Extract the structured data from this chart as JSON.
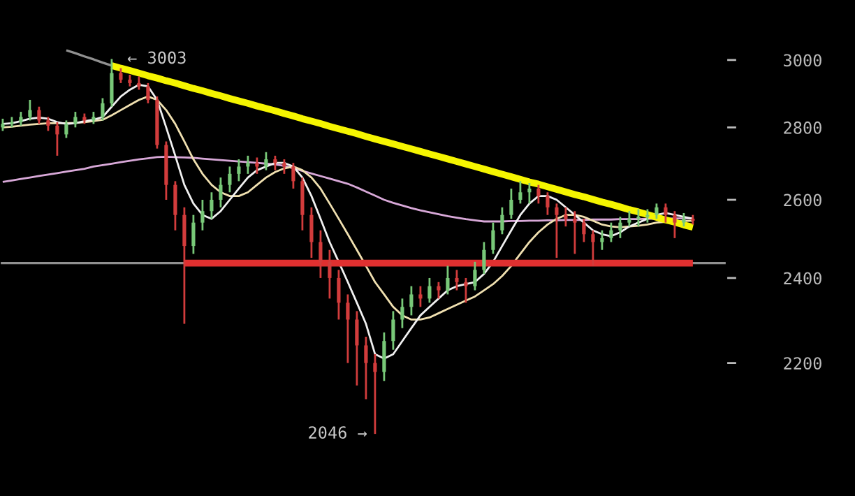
{
  "chart_data": {
    "type": "candlestick",
    "log": true,
    "grid": false,
    "tick_labels": "y",
    "ylim": [
      1920,
      3190
    ],
    "yticks": [
      2200,
      2400,
      2600,
      2800,
      3000
    ],
    "categories": [
      null,
      null,
      null,
      null,
      null,
      null,
      null,
      null,
      null,
      null,
      null,
      null,
      null,
      null,
      null,
      null,
      null,
      null,
      null,
      null,
      null,
      null,
      null,
      null,
      null,
      null,
      null,
      null,
      null,
      null,
      null,
      null,
      null,
      null,
      null,
      null,
      null,
      null,
      null,
      null,
      null,
      null,
      null,
      null,
      null,
      null,
      null,
      null,
      null,
      null,
      null,
      null,
      null,
      null,
      null,
      null,
      null,
      null,
      null,
      null,
      null,
      null,
      null,
      null,
      null,
      null,
      null,
      null,
      null,
      null,
      null,
      null,
      null,
      null,
      null,
      null,
      null
    ],
    "ohlc": [
      [
        2800,
        2825,
        2790,
        2810
      ],
      [
        2810,
        2830,
        2800,
        2815
      ],
      [
        2815,
        2845,
        2805,
        2830
      ],
      [
        2830,
        2880,
        2820,
        2850
      ],
      [
        2850,
        2860,
        2810,
        2820
      ],
      [
        2820,
        2830,
        2790,
        2805
      ],
      [
        2805,
        2815,
        2720,
        2780
      ],
      [
        2780,
        2820,
        2770,
        2810
      ],
      [
        2810,
        2845,
        2800,
        2830
      ],
      [
        2830,
        2840,
        2810,
        2820
      ],
      [
        2820,
        2845,
        2810,
        2830
      ],
      [
        2830,
        2885,
        2820,
        2870
      ],
      [
        2870,
        3003,
        2860,
        2960
      ],
      [
        2960,
        2975,
        2930,
        2940
      ],
      [
        2940,
        2955,
        2920,
        2930
      ],
      [
        2930,
        2950,
        2910,
        2920
      ],
      [
        2920,
        2930,
        2870,
        2880
      ],
      [
        2880,
        2890,
        2740,
        2750
      ],
      [
        2750,
        2760,
        2600,
        2640
      ],
      [
        2640,
        2650,
        2520,
        2560
      ],
      [
        2560,
        2580,
        2290,
        2480
      ],
      [
        2480,
        2560,
        2460,
        2540
      ],
      [
        2540,
        2600,
        2520,
        2570
      ],
      [
        2570,
        2620,
        2550,
        2600
      ],
      [
        2600,
        2660,
        2580,
        2640
      ],
      [
        2640,
        2690,
        2620,
        2670
      ],
      [
        2670,
        2710,
        2650,
        2690
      ],
      [
        2690,
        2720,
        2670,
        2700
      ],
      [
        2700,
        2715,
        2670,
        2690
      ],
      [
        2690,
        2730,
        2680,
        2710
      ],
      [
        2710,
        2720,
        2680,
        2700
      ],
      [
        2700,
        2710,
        2670,
        2690
      ],
      [
        2690,
        2700,
        2630,
        2650
      ],
      [
        2650,
        2660,
        2520,
        2560
      ],
      [
        2560,
        2580,
        2450,
        2490
      ],
      [
        2490,
        2520,
        2400,
        2440
      ],
      [
        2440,
        2470,
        2350,
        2400
      ],
      [
        2400,
        2420,
        2300,
        2340
      ],
      [
        2340,
        2360,
        2200,
        2300
      ],
      [
        2300,
        2320,
        2150,
        2240
      ],
      [
        2240,
        2260,
        2120,
        2200
      ],
      [
        2200,
        2220,
        2046,
        2180
      ],
      [
        2180,
        2270,
        2160,
        2250
      ],
      [
        2250,
        2320,
        2230,
        2300
      ],
      [
        2300,
        2350,
        2280,
        2330
      ],
      [
        2330,
        2380,
        2310,
        2360
      ],
      [
        2360,
        2380,
        2330,
        2350
      ],
      [
        2350,
        2400,
        2340,
        2380
      ],
      [
        2380,
        2390,
        2350,
        2370
      ],
      [
        2370,
        2430,
        2360,
        2400
      ],
      [
        2400,
        2420,
        2370,
        2390
      ],
      [
        2390,
        2400,
        2340,
        2380
      ],
      [
        2380,
        2440,
        2370,
        2420
      ],
      [
        2420,
        2490,
        2410,
        2470
      ],
      [
        2470,
        2540,
        2460,
        2520
      ],
      [
        2520,
        2580,
        2510,
        2560
      ],
      [
        2560,
        2630,
        2550,
        2600
      ],
      [
        2600,
        2650,
        2590,
        2620
      ],
      [
        2620,
        2645,
        2590,
        2630
      ],
      [
        2630,
        2640,
        2590,
        2610
      ],
      [
        2610,
        2620,
        2560,
        2580
      ],
      [
        2580,
        2590,
        2450,
        2560
      ],
      [
        2560,
        2580,
        2530,
        2550
      ],
      [
        2550,
        2570,
        2460,
        2540
      ],
      [
        2540,
        2550,
        2490,
        2510
      ],
      [
        2510,
        2520,
        2430,
        2490
      ],
      [
        2490,
        2520,
        2470,
        2500
      ],
      [
        2500,
        2540,
        2490,
        2520
      ],
      [
        2520,
        2555,
        2500,
        2540
      ],
      [
        2540,
        2570,
        2530,
        2550
      ],
      [
        2550,
        2575,
        2530,
        2555
      ],
      [
        2555,
        2575,
        2540,
        2560
      ],
      [
        2560,
        2590,
        2550,
        2580
      ],
      [
        2580,
        2590,
        2540,
        2560
      ],
      [
        2560,
        2570,
        2500,
        2540
      ],
      [
        2540,
        2565,
        2530,
        2550
      ],
      [
        2550,
        2560,
        2535,
        2545
      ]
    ],
    "colors": [
      "#78c878",
      "#78c878",
      "#78c878",
      "#78c878",
      "#d23c3c",
      "#d23c3c",
      "#d23c3c",
      "#78c878",
      "#78c878",
      "#d23c3c",
      "#78c878",
      "#78c878",
      "#78c878",
      "#d23c3c",
      "#d23c3c",
      "#d23c3c",
      "#d23c3c",
      "#d23c3c",
      "#d23c3c",
      "#d23c3c",
      "#d23c3c",
      "#78c878",
      "#78c878",
      "#78c878",
      "#78c878",
      "#78c878",
      "#78c878",
      "#78c878",
      "#d23c3c",
      "#78c878",
      "#d23c3c",
      "#d23c3c",
      "#d23c3c",
      "#d23c3c",
      "#d23c3c",
      "#d23c3c",
      "#d23c3c",
      "#d23c3c",
      "#d23c3c",
      "#d23c3c",
      "#d23c3c",
      "#d23c3c",
      "#78c878",
      "#78c878",
      "#78c878",
      "#78c878",
      "#d23c3c",
      "#78c878",
      "#d23c3c",
      "#78c878",
      "#d23c3c",
      "#d23c3c",
      "#78c878",
      "#78c878",
      "#78c878",
      "#78c878",
      "#78c878",
      "#78c878",
      "#78c878",
      "#d23c3c",
      "#d23c3c",
      "#d23c3c",
      "#d23c3c",
      "#d23c3c",
      "#d23c3c",
      "#d23c3c",
      "#78c878",
      "#78c878",
      "#78c878",
      "#78c878",
      "#78c878",
      "#78c878",
      "#78c878",
      "#d23c3c",
      "#d23c3c",
      "#78c878",
      "#d23c3c"
    ],
    "ref_lines": [
      {
        "axis": "y",
        "value": 2437,
        "color": "#909090"
      }
    ],
    "series": [
      {
        "type": "line",
        "color": "#d8a8d8",
        "values": [
          2648,
          2652,
          2656,
          2660,
          2664,
          2668,
          2672,
          2676,
          2680,
          2684,
          2690,
          2694,
          2698,
          2702,
          2706,
          2710,
          2713,
          2716,
          2717,
          2716,
          2715,
          2714,
          2712,
          2710,
          2708,
          2706,
          2704,
          2702,
          2700,
          2698,
          2696,
          2692,
          2685,
          2678,
          2671,
          2664,
          2657,
          2650,
          2643,
          2633,
          2622,
          2611,
          2600,
          2592,
          2585,
          2578,
          2572,
          2567,
          2562,
          2557,
          2553,
          2549,
          2546,
          2543,
          2543,
          2543,
          2544,
          2544,
          2545,
          2545,
          2546,
          2546,
          2547,
          2547,
          2547,
          2548,
          2548,
          2548,
          2549,
          2549,
          2549,
          2550,
          2550,
          2550,
          2551,
          2551,
          2551
        ]
      },
      {
        "type": "line",
        "color": "#f0e0b0",
        "values": [
          2800,
          2802,
          2805,
          2808,
          2810,
          2812,
          2812,
          2812,
          2813,
          2815,
          2818,
          2822,
          2835,
          2850,
          2865,
          2880,
          2890,
          2880,
          2850,
          2810,
          2760,
          2710,
          2670,
          2640,
          2620,
          2610,
          2610,
          2620,
          2640,
          2660,
          2675,
          2685,
          2690,
          2680,
          2660,
          2630,
          2590,
          2550,
          2510,
          2470,
          2430,
          2390,
          2360,
          2330,
          2310,
          2300,
          2300,
          2305,
          2315,
          2325,
          2335,
          2345,
          2355,
          2370,
          2385,
          2405,
          2430,
          2460,
          2490,
          2515,
          2535,
          2550,
          2560,
          2560,
          2555,
          2545,
          2535,
          2530,
          2528,
          2530,
          2532,
          2535,
          2540,
          2542,
          2543,
          2544,
          2545
        ]
      },
      {
        "type": "line",
        "color": "#f0f0f0",
        "values": [
          2810,
          2812,
          2818,
          2825,
          2828,
          2825,
          2815,
          2810,
          2812,
          2818,
          2822,
          2830,
          2860,
          2890,
          2910,
          2925,
          2920,
          2880,
          2800,
          2720,
          2640,
          2590,
          2560,
          2550,
          2570,
          2600,
          2630,
          2660,
          2680,
          2690,
          2700,
          2700,
          2690,
          2660,
          2610,
          2550,
          2490,
          2440,
          2390,
          2340,
          2290,
          2220,
          2210,
          2220,
          2250,
          2280,
          2310,
          2330,
          2350,
          2370,
          2380,
          2385,
          2390,
          2410,
          2440,
          2480,
          2520,
          2560,
          2590,
          2610,
          2610,
          2600,
          2580,
          2560,
          2540,
          2520,
          2510,
          2505,
          2515,
          2530,
          2540,
          2550,
          2560,
          2565,
          2560,
          2555,
          2550
        ]
      },
      {
        "type": "line",
        "color": "#909090",
        "values": [
          null,
          null,
          null,
          null,
          null,
          null,
          null,
          3030,
          3021,
          3011,
          3002,
          2992,
          2983,
          null,
          null,
          null,
          null,
          null,
          null,
          null,
          null,
          null,
          null,
          null,
          null,
          null,
          null,
          null,
          null,
          null,
          null,
          null,
          null,
          null,
          null,
          null,
          null,
          null,
          null,
          null,
          null,
          null,
          null,
          null,
          null,
          null,
          null,
          null,
          null,
          null,
          null,
          null,
          null,
          null,
          null,
          null,
          null,
          null,
          null,
          null,
          null,
          null,
          null,
          null,
          null,
          null,
          null,
          null,
          null,
          null,
          null,
          null,
          null,
          null,
          null,
          null,
          null
        ]
      },
      {
        "type": "line",
        "color": "#e03030",
        "values": [
          null,
          null,
          null,
          null,
          null,
          null,
          null,
          null,
          null,
          null,
          null,
          null,
          null,
          null,
          null,
          null,
          null,
          null,
          null,
          null,
          2437,
          2437,
          2437,
          2437,
          2437,
          2437,
          2437,
          2437,
          2437,
          2437,
          2437,
          2437,
          2437,
          2437,
          2437,
          2437,
          2437,
          2437,
          2437,
          2437,
          2437,
          2437,
          2437,
          2437,
          2437,
          2437,
          2437,
          2437,
          2437,
          2437,
          2437,
          2437,
          2437,
          2437,
          2437,
          2437,
          2437,
          2437,
          2437,
          2437,
          2437,
          2437,
          2437,
          2437,
          2437,
          2437,
          2437,
          2437,
          2437,
          2437,
          2437,
          2437,
          2437,
          2437,
          2437,
          2437,
          2437
        ]
      },
      {
        "type": "line",
        "color": "#f5f500",
        "values": [
          null,
          null,
          null,
          null,
          null,
          null,
          null,
          null,
          null,
          null,
          null,
          null,
          2983,
          2975,
          2968,
          2960,
          2952,
          2945,
          2937,
          2930,
          2922,
          2914,
          2907,
          2899,
          2892,
          2884,
          2877,
          2870,
          2862,
          2855,
          2848,
          2840,
          2833,
          2825,
          2818,
          2811,
          2803,
          2796,
          2789,
          2782,
          2774,
          2767,
          2760,
          2753,
          2746,
          2739,
          2732,
          2725,
          2718,
          2711,
          2704,
          2697,
          2690,
          2683,
          2676,
          2669,
          2662,
          2655,
          2648,
          2642,
          2635,
          2628,
          2621,
          2614,
          2608,
          2601,
          2594,
          2588,
          2581,
          2574,
          2568,
          2561,
          2554,
          2547,
          2541,
          2534,
          2528
        ]
      }
    ],
    "annotations": [
      "← 3003",
      "2046 →"
    ]
  }
}
